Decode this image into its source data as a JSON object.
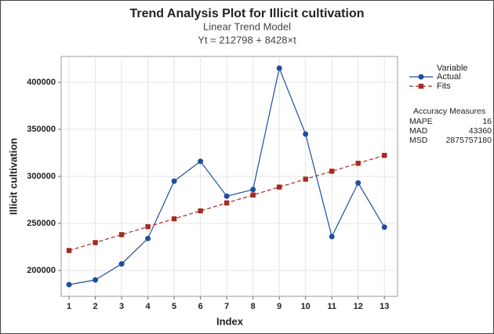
{
  "chart_data": {
    "type": "line",
    "title": "Trend Analysis Plot for Illicit cultivation",
    "subtitle": [
      "Linear Trend Model",
      "Yt = 212798 + 8428×t"
    ],
    "x_label": "Index",
    "y_label": "Illicit cultivation",
    "x": [
      1,
      2,
      3,
      4,
      5,
      6,
      7,
      8,
      9,
      10,
      11,
      12,
      13
    ],
    "series": [
      {
        "name": "Actual",
        "color": "#1f4e9c",
        "marker": "circle",
        "dashed": false,
        "values": [
          185000,
          190000,
          207000,
          234000,
          295000,
          316000,
          279000,
          286000,
          415000,
          345000,
          236000,
          293000,
          246000
        ]
      },
      {
        "name": "Fits",
        "color": "#a52a1f",
        "marker": "square",
        "dashed": true,
        "values": [
          221226,
          229654,
          238082,
          246510,
          254938,
          263366,
          271794,
          280222,
          288650,
          297078,
          305506,
          313934,
          322362
        ]
      }
    ],
    "legend_title": "Variable",
    "accuracy_measures": {
      "title": "Accuracy Measures",
      "rows": [
        {
          "label": "MAPE",
          "value": 16
        },
        {
          "label": "MAD",
          "value": 43360
        },
        {
          "label": "MSD",
          "value": 2875757180
        }
      ]
    },
    "xlim": [
      0.7,
      13.5
    ],
    "xticks": [
      1,
      2,
      3,
      4,
      5,
      6,
      7,
      8,
      9,
      10,
      11,
      12,
      13
    ],
    "ylim": [
      172500,
      427500
    ],
    "yticks": [
      200000,
      250000,
      300000,
      350000,
      400000
    ],
    "grid": true,
    "legend": "right"
  }
}
